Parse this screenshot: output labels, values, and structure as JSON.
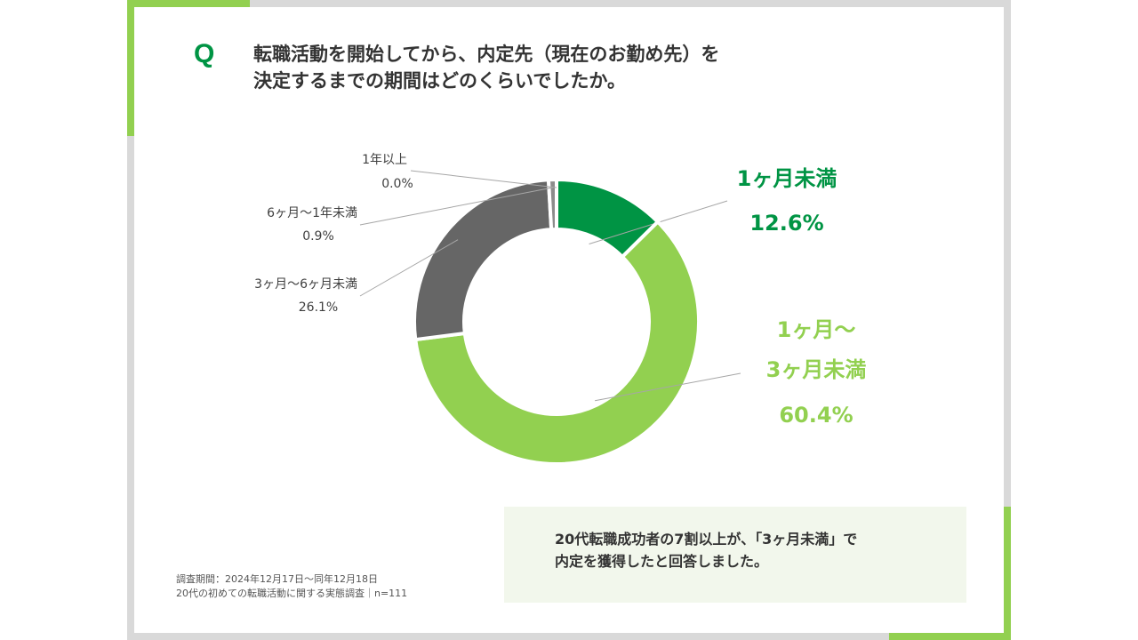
{
  "header": {
    "q_mark": "Q",
    "question_line1": "転職活動を開始してから、内定先（現在のお勤め先）を",
    "question_line2": "決定するまでの期間はどのくらいでしたか。"
  },
  "chart_data": {
    "type": "pie",
    "donut": true,
    "unit": "%",
    "categories": [
      "1ヶ月未満",
      "1ヶ月〜3ヶ月未満",
      "3ヶ月〜6ヶ月未満",
      "6ヶ月〜1年未満",
      "1年以上"
    ],
    "values": [
      12.6,
      60.4,
      26.1,
      0.9,
      0.0
    ],
    "value_labels": [
      "12.6%",
      "60.4%",
      "26.1%",
      "0.9%",
      "0.0%"
    ],
    "label_lines": [
      [
        "1ヶ月未満"
      ],
      [
        "1ヶ月〜",
        "3ヶ月未満"
      ],
      [
        "3ヶ月〜6ヶ月未満"
      ],
      [
        "6ヶ月〜1年未満"
      ],
      [
        "1年以上"
      ]
    ],
    "colors": [
      "#009444",
      "#92d050",
      "#666666",
      "#8c8c8c",
      "#aaaaaa"
    ],
    "label_colors": [
      "#009444",
      "#92d050",
      "#404040",
      "#404040",
      "#404040"
    ]
  },
  "callout": {
    "line1": "20代転職成功者の7割以上が、「3ヶ月未満」で",
    "line2": "内定を獲得したと回答しました。"
  },
  "footnote": {
    "line1": "調査期間：2024年12月17日〜同年12月18日",
    "line2": "20代の初めての転職活動に関する実態調査｜n=111"
  }
}
